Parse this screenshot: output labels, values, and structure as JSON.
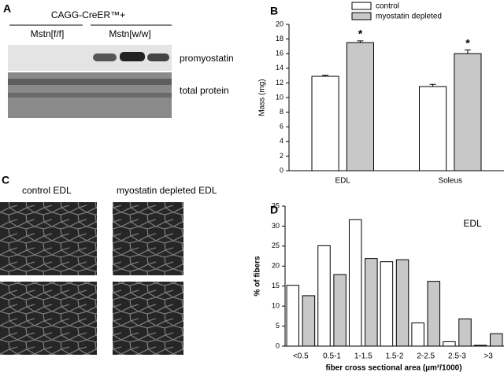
{
  "panels": {
    "a": {
      "letter": "A",
      "genotype": "CAGG-CreER™+",
      "groups": [
        "Mstn[f/f]",
        "Mstn[w/w]"
      ],
      "rows": [
        "promyostatin",
        "total protein"
      ]
    },
    "c": {
      "letter": "C",
      "images": [
        "control EDL",
        "myostatin depleted EDL"
      ]
    }
  },
  "chart_data": [
    {
      "type": "bar",
      "letter": "B",
      "ylabel": "Mass (mg)",
      "categories": [
        "EDL",
        "Soleus"
      ],
      "series": [
        {
          "name": "control",
          "color": "#ffffff",
          "values": [
            12.9,
            11.5
          ],
          "errors": [
            0.15,
            0.3
          ]
        },
        {
          "name": "myostatin depleted",
          "color": "#c8c8c8",
          "values": [
            17.5,
            16.0
          ],
          "errors": [
            0.25,
            0.5
          ]
        }
      ],
      "annotations": [
        {
          "text": "*",
          "series": 1,
          "category": 0
        },
        {
          "text": "*",
          "series": 1,
          "category": 1
        }
      ],
      "ylim": [
        0,
        20
      ],
      "yticks": [
        0,
        2,
        4,
        6,
        8,
        10,
        12,
        14,
        16,
        18,
        20
      ]
    },
    {
      "type": "bar",
      "letter": "D",
      "ylabel": "% of fibers",
      "xlabel": "fiber cross sectional area (µm²/1000)",
      "note": "EDL",
      "categories": [
        "<0.5",
        "0.5-1",
        "1-1.5",
        "1.5-2",
        "2-2.5",
        "2.5-3",
        ">3"
      ],
      "series": [
        {
          "color": "#ffffff",
          "values": [
            15.2,
            25.1,
            31.6,
            21.1,
            5.8,
            1.1,
            0.2
          ]
        },
        {
          "color": "#c8c8c8",
          "values": [
            12.6,
            17.9,
            21.9,
            21.6,
            16.2,
            6.8,
            3.1
          ]
        }
      ],
      "ylim": [
        0,
        35
      ],
      "yticks": [
        0,
        5,
        10,
        15,
        20,
        25,
        30,
        35
      ]
    }
  ]
}
